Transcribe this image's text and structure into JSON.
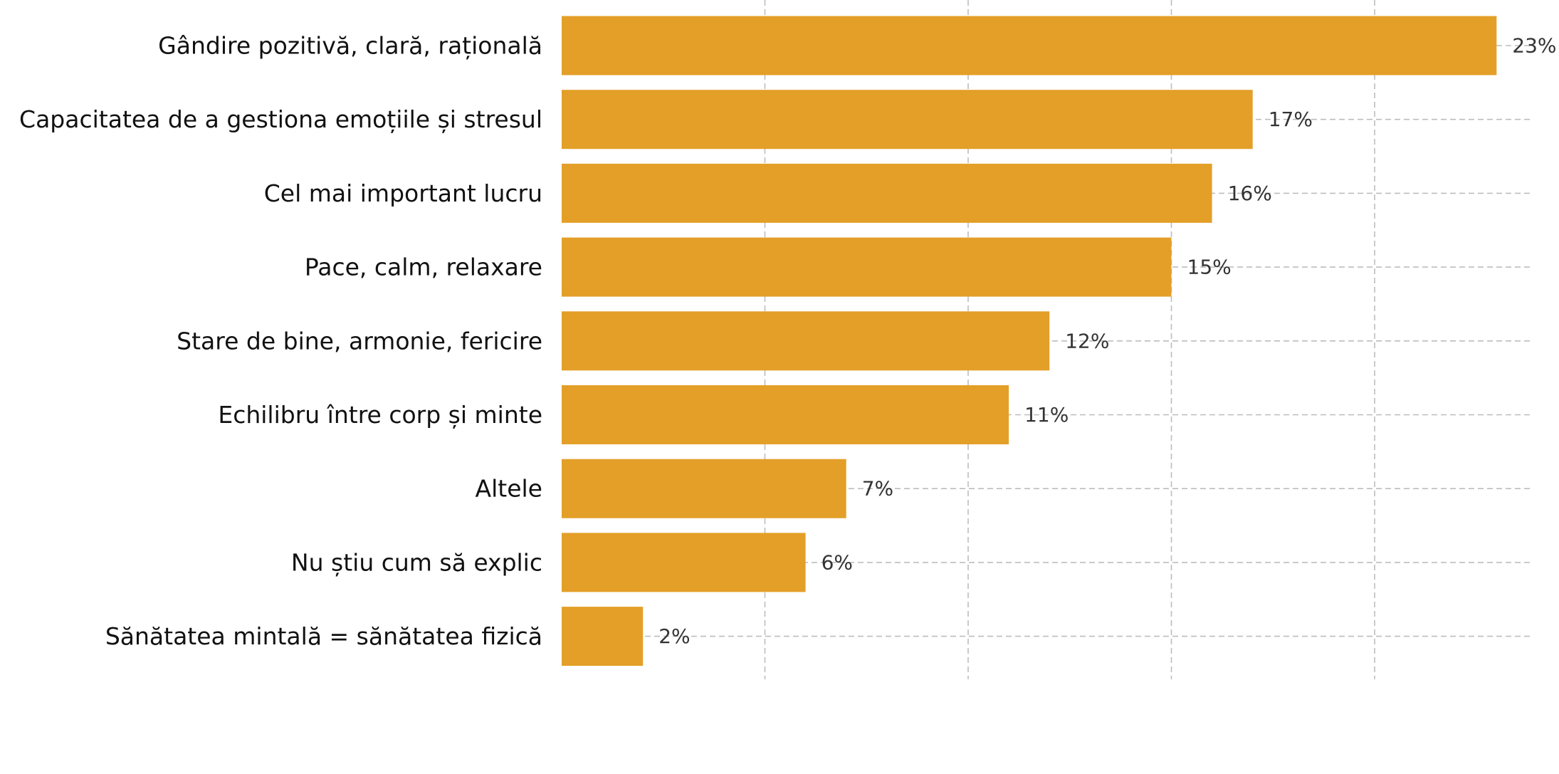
{
  "chart_data": {
    "type": "bar",
    "orientation": "horizontal",
    "title": "",
    "xlabel": "",
    "ylabel": "",
    "categories": [
      "Gândire pozitivă, clară, rațională",
      "Capacitatea de a gestiona emoțiile și stresul",
      "Cel mai important lucru",
      "Pace, calm, relaxare",
      "Stare de bine, armonie, fericire",
      "Echilibru între corp și minte",
      "Altele",
      "Nu știu cum să explic",
      "Sănătatea mintală = sănătatea fizică"
    ],
    "values": [
      23,
      17,
      16,
      15,
      12,
      11,
      7,
      6,
      2
    ],
    "value_labels": [
      "23%",
      "17%",
      "16%",
      "15%",
      "12%",
      "11%",
      "7%",
      "6%",
      "2%"
    ],
    "unit": "%",
    "xlim": [
      0,
      24
    ],
    "x_gridlines": [
      0,
      5,
      10,
      15,
      20
    ],
    "y_gridlines_per_category": true,
    "grid": true,
    "bar_color": "#E39F27",
    "legend": "none"
  }
}
